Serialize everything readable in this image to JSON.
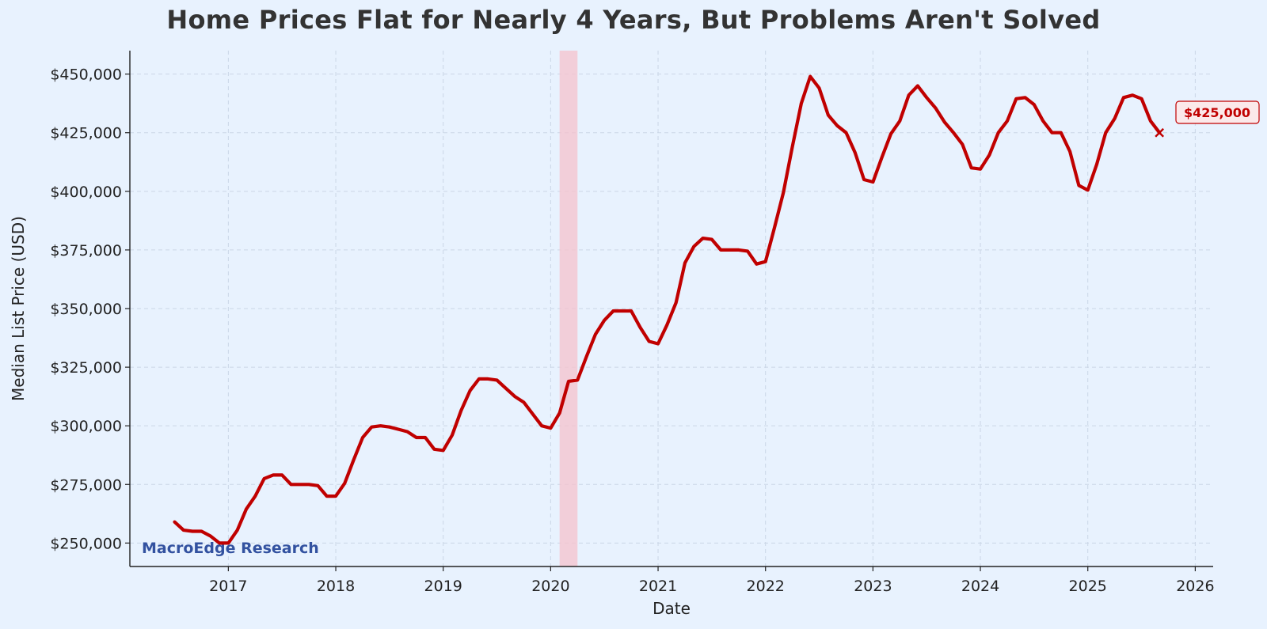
{
  "page": {
    "title": "Home Prices Flat for Nearly 4 Years, But Problems Aren't Solved"
  },
  "chart_data": {
    "type": "line",
    "title": "Home Prices Flat for Nearly 4 Years, But Problems Aren't Solved",
    "xlabel": "Date",
    "ylabel": "Median List Price (USD)",
    "watermark": "MacroEdge Research",
    "last_value_label": "$425,000",
    "xlim": [
      "2016-02",
      "2026-03"
    ],
    "ylim": [
      240000,
      460000
    ],
    "x_ticks": [
      "2017",
      "2018",
      "2019",
      "2020",
      "2021",
      "2022",
      "2023",
      "2024",
      "2025",
      "2026"
    ],
    "y_ticks": [
      "$250,000",
      "$275,000",
      "$300,000",
      "$325,000",
      "$350,000",
      "$375,000",
      "$400,000",
      "$425,000",
      "$450,000"
    ],
    "y_tick_values": [
      250000,
      275000,
      300000,
      325000,
      350000,
      375000,
      400000,
      425000,
      450000
    ],
    "grid": true,
    "shaded_region": {
      "start": "2020-02",
      "end": "2020-04",
      "color": "#f5c2cc"
    },
    "line_color": "#c00000",
    "series": [
      {
        "x": [
          "2016-07",
          "2016-08",
          "2016-09",
          "2016-10",
          "2016-11",
          "2016-12",
          "2017-01",
          "2017-02",
          "2017-03",
          "2017-04",
          "2017-05",
          "2017-06",
          "2017-07",
          "2017-08",
          "2017-09",
          "2017-10",
          "2017-11",
          "2017-12",
          "2018-01",
          "2018-02",
          "2018-03",
          "2018-04",
          "2018-05",
          "2018-06",
          "2018-07",
          "2018-08",
          "2018-09",
          "2018-10",
          "2018-11",
          "2018-12",
          "2019-01",
          "2019-02",
          "2019-03",
          "2019-04",
          "2019-05",
          "2019-06",
          "2019-07",
          "2019-08",
          "2019-09",
          "2019-10",
          "2019-11",
          "2019-12",
          "2020-01",
          "2020-02",
          "2020-03",
          "2020-04",
          "2020-05",
          "2020-06",
          "2020-07",
          "2020-08",
          "2020-09",
          "2020-10",
          "2020-11",
          "2020-12",
          "2021-01",
          "2021-02",
          "2021-03",
          "2021-04",
          "2021-05",
          "2021-06",
          "2021-07",
          "2021-08",
          "2021-09",
          "2021-10",
          "2021-11",
          "2021-12",
          "2022-01",
          "2022-02",
          "2022-03",
          "2022-04",
          "2022-05",
          "2022-06",
          "2022-07",
          "2022-08",
          "2022-09",
          "2022-10",
          "2022-11",
          "2022-12",
          "2023-01",
          "2023-02",
          "2023-03",
          "2023-04",
          "2023-05",
          "2023-06",
          "2023-07",
          "2023-08",
          "2023-09",
          "2023-10",
          "2023-11",
          "2023-12",
          "2024-01",
          "2024-02",
          "2024-03",
          "2024-04",
          "2024-05",
          "2024-06",
          "2024-07",
          "2024-08",
          "2024-09",
          "2024-10",
          "2024-11",
          "2024-12",
          "2025-01",
          "2025-02",
          "2025-03",
          "2025-04",
          "2025-05",
          "2025-06",
          "2025-07",
          "2025-08",
          "2025-09"
        ],
        "values": [
          259000,
          255500,
          255000,
          255000,
          253000,
          250000,
          250000,
          255500,
          264500,
          270000,
          277500,
          279000,
          279000,
          275000,
          275000,
          275000,
          274500,
          270000,
          270000,
          275500,
          285500,
          295000,
          299500,
          300000,
          299500,
          298500,
          297500,
          295000,
          295000,
          290000,
          289500,
          296000,
          306500,
          315000,
          320000,
          320000,
          319500,
          316000,
          312500,
          310000,
          305000,
          300000,
          299000,
          305500,
          319000,
          319500,
          329500,
          339000,
          345000,
          349000,
          349000,
          349000,
          342000,
          336000,
          335000,
          343000,
          352500,
          369500,
          376500,
          380000,
          379500,
          375000,
          375000,
          375000,
          374500,
          369000,
          370000,
          384500,
          399500,
          419000,
          437500,
          449000,
          444000,
          432500,
          428000,
          425000,
          416500,
          405000,
          404000,
          414500,
          424500,
          430000,
          441000,
          445000,
          440000,
          435500,
          429500,
          425000,
          420000,
          410000,
          409500,
          415500,
          425000,
          430000,
          439500,
          440000,
          437000,
          430000,
          425000,
          425000,
          417000,
          402500,
          400500,
          411500,
          425000,
          431000,
          440000,
          441000,
          439500,
          430000,
          425000
        ]
      }
    ]
  }
}
